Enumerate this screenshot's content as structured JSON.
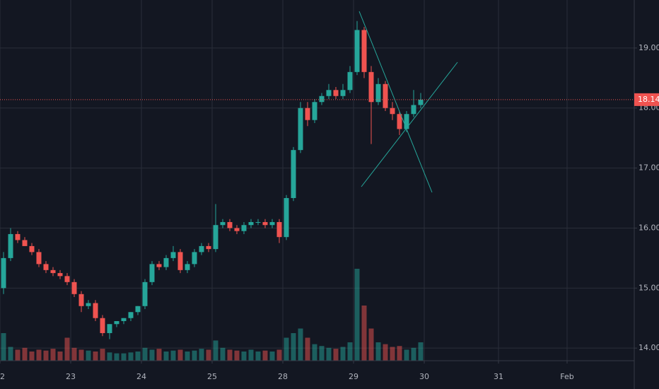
{
  "chart_data": {
    "type": "candlestick",
    "x": [
      0.05,
      0.15,
      0.25,
      0.35,
      0.45,
      0.55,
      0.65,
      0.75,
      0.85,
      0.95,
      1.05,
      1.15,
      1.25,
      1.35,
      1.45,
      1.55,
      1.65,
      1.75,
      1.85,
      1.95,
      2.05,
      2.15,
      2.25,
      2.35,
      2.45,
      2.55,
      2.65,
      2.75,
      2.85,
      2.95,
      3.05,
      3.15,
      3.25,
      3.35,
      3.45,
      3.55,
      3.65,
      3.75,
      3.85,
      3.95,
      4.05,
      4.15,
      4.25,
      4.35,
      4.45,
      4.55,
      4.65,
      4.75,
      4.85,
      4.95,
      5.05,
      5.15,
      5.25,
      5.35,
      5.45,
      5.55,
      5.65,
      5.75,
      5.85,
      5.95
    ],
    "open": [
      15.0,
      15.5,
      15.9,
      15.8,
      15.7,
      15.6,
      15.4,
      15.3,
      15.25,
      15.2,
      15.1,
      14.9,
      14.7,
      14.75,
      14.5,
      14.25,
      14.4,
      14.45,
      14.5,
      14.6,
      14.7,
      15.1,
      15.4,
      15.35,
      15.5,
      15.6,
      15.3,
      15.4,
      15.6,
      15.7,
      15.65,
      16.05,
      16.1,
      16.0,
      15.95,
      16.05,
      16.1,
      16.1,
      16.05,
      16.1,
      15.85,
      16.5,
      17.3,
      18.0,
      17.8,
      18.1,
      18.2,
      18.3,
      18.2,
      18.3,
      18.6,
      19.3,
      18.6,
      18.1,
      18.4,
      18.0,
      17.9,
      17.65,
      17.9,
      18.05
    ],
    "high": [
      15.6,
      16.0,
      15.95,
      15.85,
      15.75,
      15.65,
      15.45,
      15.35,
      15.3,
      15.25,
      15.15,
      14.95,
      14.8,
      14.8,
      14.55,
      14.4,
      14.45,
      14.5,
      14.6,
      14.7,
      15.15,
      15.45,
      15.45,
      15.55,
      15.7,
      15.65,
      15.45,
      15.65,
      15.75,
      15.75,
      16.4,
      16.15,
      16.15,
      16.05,
      16.1,
      16.15,
      16.15,
      16.15,
      16.15,
      16.15,
      16.55,
      17.35,
      18.1,
      18.1,
      18.15,
      18.25,
      18.4,
      18.35,
      18.4,
      18.7,
      19.45,
      19.35,
      18.7,
      18.5,
      18.45,
      18.1,
      17.95,
      17.95,
      18.3,
      18.25
    ],
    "low": [
      14.9,
      15.45,
      15.75,
      15.7,
      15.55,
      15.35,
      15.25,
      15.2,
      15.15,
      15.05,
      14.85,
      14.6,
      14.65,
      14.45,
      14.2,
      14.15,
      14.35,
      14.4,
      14.45,
      14.55,
      14.65,
      15.05,
      15.3,
      15.3,
      15.45,
      15.25,
      15.25,
      15.35,
      15.55,
      15.6,
      15.6,
      16.0,
      15.95,
      15.9,
      15.9,
      16.0,
      16.05,
      16.0,
      16.0,
      15.75,
      15.8,
      16.45,
      17.25,
      17.7,
      17.75,
      18.05,
      18.15,
      18.15,
      18.15,
      18.25,
      18.55,
      18.5,
      17.4,
      18.05,
      17.95,
      17.8,
      17.55,
      17.6,
      17.85,
      18.0
    ],
    "close": [
      15.5,
      15.9,
      15.8,
      15.7,
      15.6,
      15.4,
      15.3,
      15.25,
      15.2,
      15.1,
      14.9,
      14.7,
      14.75,
      14.5,
      14.25,
      14.4,
      14.45,
      14.5,
      14.6,
      14.7,
      15.1,
      15.4,
      15.35,
      15.5,
      15.6,
      15.3,
      15.4,
      15.6,
      15.7,
      15.65,
      16.05,
      16.1,
      16.0,
      15.95,
      16.05,
      16.1,
      16.1,
      16.05,
      16.1,
      15.85,
      16.5,
      17.3,
      18.0,
      17.8,
      18.1,
      18.2,
      18.3,
      18.2,
      18.3,
      18.6,
      19.3,
      18.6,
      18.1,
      18.4,
      18.0,
      17.9,
      17.65,
      17.9,
      18.05,
      18.14
    ],
    "volume": [
      30,
      15,
      12,
      14,
      10,
      12,
      11,
      13,
      10,
      25,
      14,
      12,
      11,
      10,
      13,
      9,
      8,
      8,
      9,
      10,
      14,
      12,
      13,
      10,
      11,
      12,
      10,
      11,
      13,
      12,
      22,
      14,
      12,
      11,
      10,
      12,
      10,
      11,
      10,
      12,
      25,
      30,
      35,
      25,
      18,
      16,
      14,
      13,
      15,
      20,
      100,
      60,
      35,
      20,
      18,
      15,
      16,
      12,
      14,
      20
    ],
    "volume_lim": [
      0,
      100
    ],
    "ylim": [
      13.79,
      19.8
    ],
    "yticks": [
      {
        "value": 14,
        "label": "14.00"
      },
      {
        "value": 15,
        "label": "15.00"
      },
      {
        "value": 16,
        "label": "16.00"
      },
      {
        "value": 17,
        "label": "17.00"
      },
      {
        "value": 18,
        "label": "18.00"
      },
      {
        "value": 19,
        "label": "19.00"
      }
    ],
    "xlim": [
      0,
      8.97
    ],
    "xticks": [
      {
        "value": 0,
        "label": "22"
      },
      {
        "value": 1,
        "label": "23"
      },
      {
        "value": 2,
        "label": "24"
      },
      {
        "value": 3,
        "label": "25"
      },
      {
        "value": 4,
        "label": "28"
      },
      {
        "value": 5,
        "label": "29"
      },
      {
        "value": 6,
        "label": "30"
      },
      {
        "value": 7.05,
        "label": "31"
      },
      {
        "value": 8.02,
        "label": "Feb"
      }
    ],
    "last_price": 18.14,
    "up_color": "#26a69a",
    "down_color": "#ef5350",
    "grid": true
  }
}
